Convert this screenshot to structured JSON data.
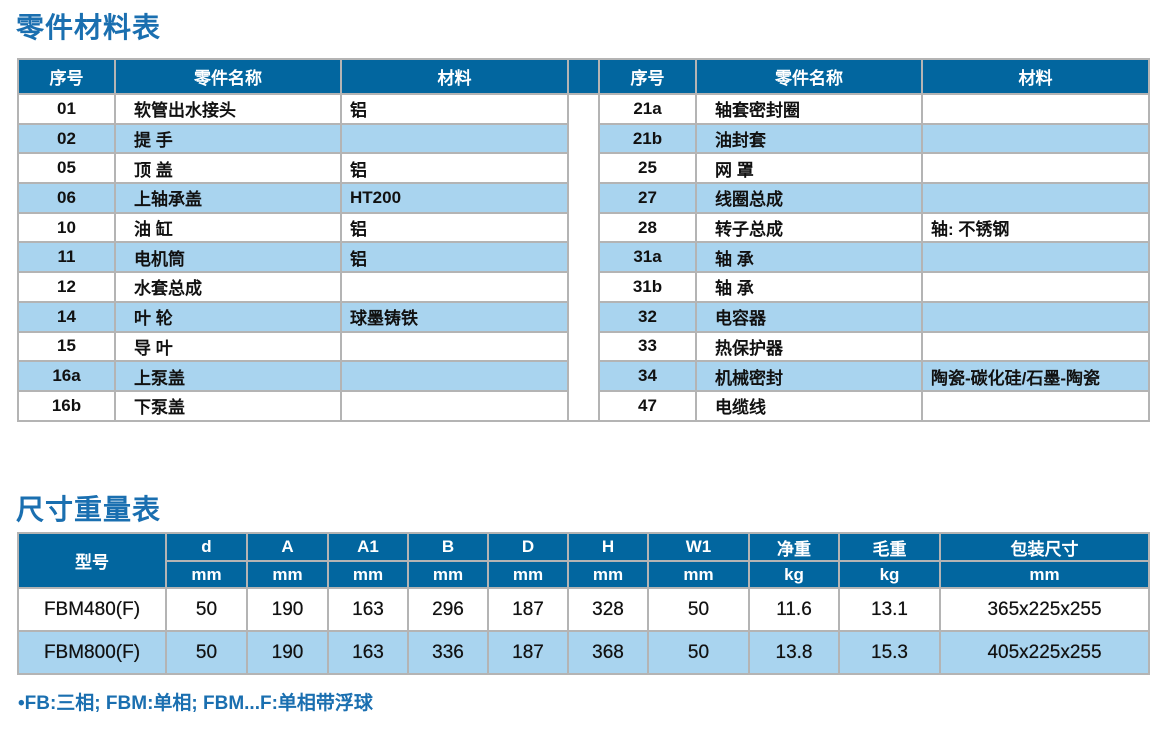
{
  "parts_title": "零件材料表",
  "parts_headers": [
    "序号",
    "零件名称",
    "材料"
  ],
  "parts_left": [
    {
      "no": "01",
      "name": "软管出水接头",
      "material": "铝"
    },
    {
      "no": "02",
      "name": "提 手",
      "material": ""
    },
    {
      "no": "05",
      "name": "顶 盖",
      "material": "铝"
    },
    {
      "no": "06",
      "name": "上轴承盖",
      "material": "HT200"
    },
    {
      "no": "10",
      "name": "油 缸",
      "material": "铝"
    },
    {
      "no": "11",
      "name": "电机筒",
      "material": "铝"
    },
    {
      "no": "12",
      "name": "水套总成",
      "material": ""
    },
    {
      "no": "14",
      "name": "叶 轮",
      "material": "球墨铸铁"
    },
    {
      "no": "15",
      "name": "导 叶",
      "material": ""
    },
    {
      "no": "16a",
      "name": "上泵盖",
      "material": ""
    },
    {
      "no": "16b",
      "name": "下泵盖",
      "material": ""
    }
  ],
  "parts_right": [
    {
      "no": "21a",
      "name": "轴套密封圈",
      "material": ""
    },
    {
      "no": "21b",
      "name": "油封套",
      "material": ""
    },
    {
      "no": "25",
      "name": "网 罩",
      "material": ""
    },
    {
      "no": "27",
      "name": "线圈总成",
      "material": ""
    },
    {
      "no": "28",
      "name": "转子总成",
      "material": "轴: 不锈钢"
    },
    {
      "no": "31a",
      "name": "轴 承",
      "material": ""
    },
    {
      "no": "31b",
      "name": "轴 承",
      "material": ""
    },
    {
      "no": "32",
      "name": "电容器",
      "material": ""
    },
    {
      "no": "33",
      "name": "热保护器",
      "material": ""
    },
    {
      "no": "34",
      "name": "机械密封",
      "material": "陶瓷-碳化硅/石墨-陶瓷"
    },
    {
      "no": "47",
      "name": "电缆线",
      "material": ""
    }
  ],
  "dims_title": "尺寸重量表",
  "dims_model_header": "型号",
  "dims_headers": [
    "d",
    "A",
    "A1",
    "B",
    "D",
    "H",
    "W1",
    "净重",
    "毛重",
    "包装尺寸"
  ],
  "dims_units": [
    "mm",
    "mm",
    "mm",
    "mm",
    "mm",
    "mm",
    "mm",
    "kg",
    "kg",
    "mm"
  ],
  "dims_rows": [
    {
      "model": "FBM480(F)",
      "values": [
        "50",
        "190",
        "163",
        "296",
        "187",
        "328",
        "50",
        "11.6",
        "13.1",
        "365x225x255"
      ]
    },
    {
      "model": "FBM800(F)",
      "values": [
        "50",
        "190",
        "163",
        "336",
        "187",
        "368",
        "50",
        "13.8",
        "15.3",
        "405x225x255"
      ]
    }
  ],
  "footnote": "FB:三相; FBM:单相; FBM...F:单相带浮球",
  "colors": {
    "header": "#02669f",
    "alt_row": "#a9d4ef",
    "title": "#1a6fb0"
  }
}
